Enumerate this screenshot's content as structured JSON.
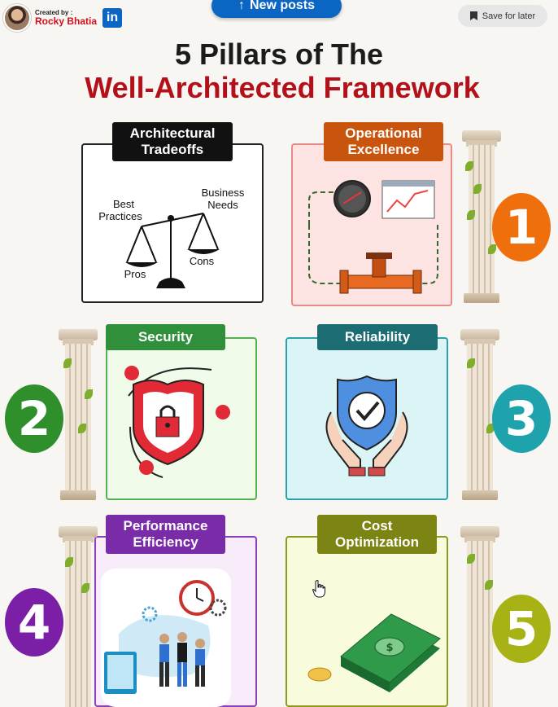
{
  "header": {
    "created_by": "Created by :",
    "author_name": "Rocky Bhatia",
    "linkedin_logo": "in",
    "new_posts": "New posts",
    "save_for_later": "Save for later"
  },
  "title": {
    "line1": "5 Pillars of The",
    "line2": "Well-Architected Framework"
  },
  "cards": {
    "tradeoffs": {
      "label_line1": "Architectural",
      "label_line2": "Tradeoffs",
      "best_line1": "Best",
      "best_line2": "Practices",
      "business_line1": "Business",
      "business_line2": "Needs",
      "pros": "Pros",
      "cons": "Cons"
    },
    "operational": {
      "label_line1": "Operational",
      "label_line2": "Excellence",
      "number": "1"
    },
    "security": {
      "label": "Security",
      "number": "2"
    },
    "reliability": {
      "label": "Reliability",
      "number": "3"
    },
    "performance": {
      "label_line1": "Performance",
      "label_line2": "Efficiency",
      "number": "4"
    },
    "cost": {
      "label_line1": "Cost",
      "label_line2": "Optimization",
      "number": "5"
    }
  },
  "colors": {
    "title_red": "#b3101a",
    "linkedin_blue": "#0a66c2",
    "orange": "#f06f0d",
    "green": "#2f8f2b",
    "teal": "#1ea3ad",
    "purple": "#7c1fa7",
    "olive": "#a7b214"
  },
  "icons": [
    "up-arrow-icon",
    "bookmark-icon",
    "scale-icon",
    "gauge-icon",
    "line-chart-icon",
    "pipe-valve-icon",
    "shield-lock-icon",
    "hands-shield-check-icon",
    "clock-gears-icon",
    "money-stack-icon",
    "hand-cursor-icon"
  ]
}
